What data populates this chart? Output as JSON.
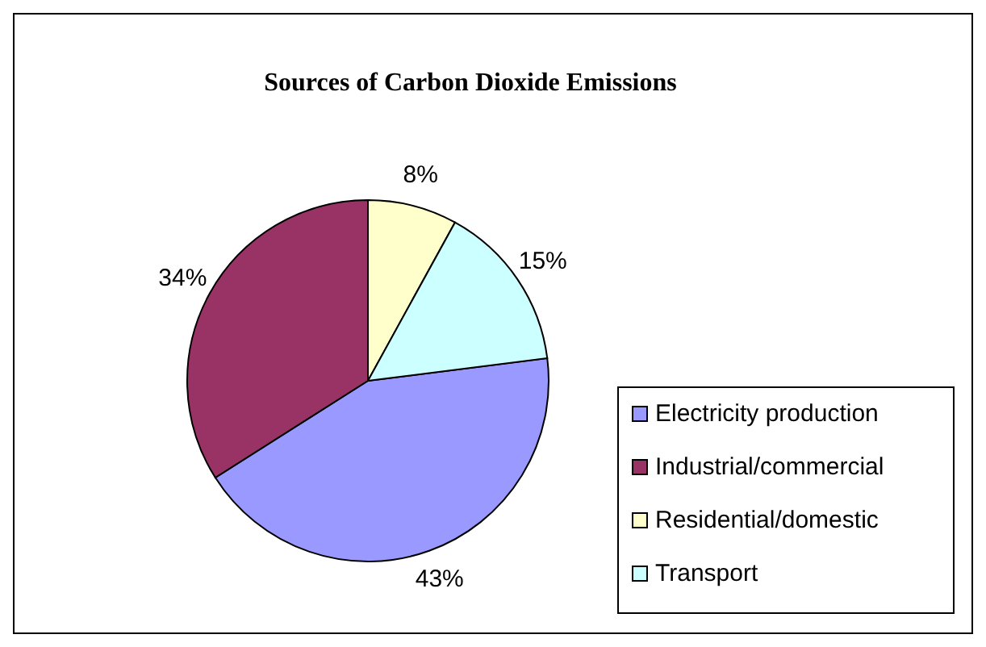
{
  "chart_data": {
    "type": "pie",
    "title": "Sources of Carbon Dioxide Emissions",
    "categories": [
      "Electricity production",
      "Industrial/commercial",
      "Residential/domestic",
      "Transport"
    ],
    "values": [
      43,
      34,
      8,
      15
    ],
    "colors": [
      "#9999ff",
      "#993366",
      "#ffffcc",
      "#ccffff"
    ],
    "value_labels": [
      "43%",
      "34%",
      "8%",
      "15%"
    ],
    "legend": "right"
  }
}
